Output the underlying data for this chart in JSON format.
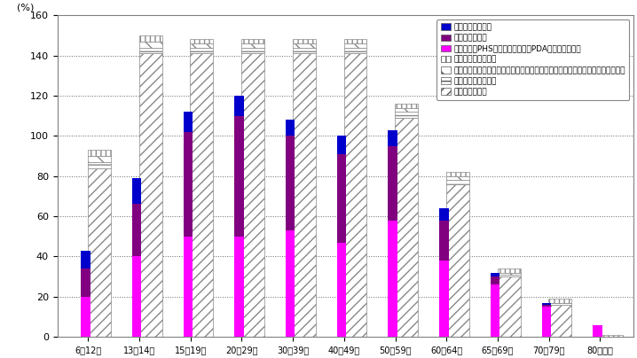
{
  "categories": [
    "6〒12歳",
    "13〒14歳",
    "15〒19歳",
    "20〒29歳",
    "30〒39歳",
    "40〒49歳",
    "50〒59歳",
    "60〒64歳",
    "65〒69歳",
    "70〒79歳",
    "80歳以上"
  ],
  "solid_keitai": [
    20,
    40,
    50,
    50,
    53,
    47,
    58,
    38,
    26,
    15,
    6
  ],
  "solid_smartphone": [
    14,
    26,
    52,
    60,
    47,
    44,
    37,
    20,
    4,
    1,
    0
  ],
  "solid_tablet": [
    9,
    13,
    10,
    10,
    8,
    9,
    8,
    6,
    2,
    1,
    0
  ],
  "hatch_home_pc": [
    84,
    141,
    141,
    141,
    141,
    141,
    109,
    76,
    30,
    16,
    0
  ],
  "hatch_other_pc": [
    3,
    3,
    3,
    3,
    3,
    3,
    3,
    2,
    1,
    1,
    0
  ],
  "hatch_sonota": [
    3,
    3,
    2,
    2,
    2,
    2,
    2,
    2,
    1,
    0,
    0
  ],
  "hatch_mukaito": [
    3,
    3,
    2,
    2,
    2,
    2,
    2,
    2,
    2,
    2,
    1
  ],
  "legend_labels": [
    "タブレット型端末",
    "スマートフォン",
    "携帯電話（PHS、携帯情報端末（PDA）なども含む）",
    "利用機器「無回答」",
    "その他（テレビ受信機、インターネット対応型家庭用ゲーム機・その他の機器）",
    "自宅以外のパソコン",
    "自宅のパソコン"
  ],
  "ylim": [
    0,
    160
  ],
  "yticks": [
    0,
    20,
    40,
    60,
    80,
    100,
    120,
    140,
    160
  ],
  "ylabel": "(%)"
}
